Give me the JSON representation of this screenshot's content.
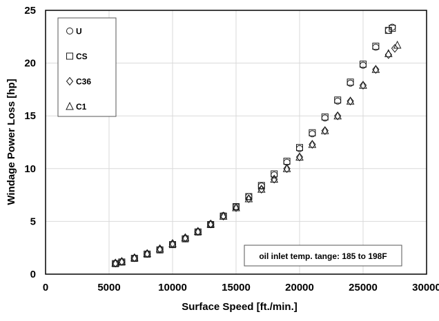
{
  "chart_data": {
    "type": "scatter",
    "xlabel": "Surface Speed [ft./min.]",
    "ylabel": "Windage Power Loss  [hp]",
    "xlim": [
      0,
      30000
    ],
    "ylim": [
      0,
      25
    ],
    "x_ticks": [
      0,
      5000,
      10000,
      15000,
      20000,
      25000,
      30000
    ],
    "y_ticks": [
      0,
      5,
      10,
      15,
      20,
      25
    ],
    "grid": true,
    "legend_position": "top-left",
    "annotation": "oil inlet temp. tange: 185 to 198F",
    "series": [
      {
        "name": "U",
        "marker": "circle",
        "x": [
          5500,
          6000,
          7000,
          8000,
          9000,
          10000,
          11000,
          12000,
          13000,
          14000,
          15000,
          16000,
          17000,
          18000,
          19000,
          20000,
          21000,
          22000,
          23000,
          24000,
          25000,
          26000,
          27000,
          27300
        ],
        "y": [
          1.0,
          1.15,
          1.5,
          1.9,
          2.3,
          2.8,
          3.35,
          4.0,
          4.75,
          5.55,
          6.4,
          7.35,
          8.35,
          9.4,
          10.6,
          11.9,
          13.3,
          14.8,
          16.4,
          18.1,
          19.8,
          21.5,
          23.1,
          23.4
        ]
      },
      {
        "name": "CS",
        "marker": "square",
        "x": [
          5500,
          6000,
          7000,
          8000,
          9000,
          10000,
          11000,
          12000,
          13000,
          14000,
          15000,
          16000,
          17000,
          18000,
          19000,
          20000,
          21000,
          22000,
          23000,
          24000,
          25000,
          26000,
          27000,
          27300
        ],
        "y": [
          1.0,
          1.15,
          1.5,
          1.9,
          2.3,
          2.8,
          3.35,
          4.0,
          4.7,
          5.5,
          6.4,
          7.35,
          8.4,
          9.5,
          10.7,
          12.0,
          13.4,
          14.9,
          16.5,
          18.2,
          19.9,
          21.6,
          23.1,
          23.3
        ]
      },
      {
        "name": "C36",
        "marker": "diamond",
        "x": [
          5500,
          6000,
          7000,
          8000,
          9000,
          10000,
          11000,
          12000,
          13000,
          14000,
          15000,
          16000,
          17000,
          18000,
          19000,
          20000,
          21000,
          22000,
          23000,
          24000,
          25000,
          26000,
          27000,
          27500
        ],
        "y": [
          1.05,
          1.2,
          1.55,
          1.95,
          2.4,
          2.9,
          3.45,
          4.05,
          4.75,
          5.5,
          6.3,
          7.15,
          8.05,
          9.0,
          10.0,
          11.1,
          12.3,
          13.6,
          15.0,
          16.4,
          17.9,
          19.4,
          20.8,
          21.4
        ]
      },
      {
        "name": "C1",
        "marker": "triangle",
        "x": [
          5500,
          6000,
          7000,
          8000,
          9000,
          10000,
          11000,
          12000,
          13000,
          14000,
          15000,
          16000,
          17000,
          18000,
          19000,
          20000,
          21000,
          22000,
          23000,
          24000,
          25000,
          26000,
          27000,
          27700
        ],
        "y": [
          1.05,
          1.2,
          1.55,
          1.95,
          2.4,
          2.9,
          3.45,
          4.05,
          4.75,
          5.5,
          6.3,
          7.15,
          8.05,
          9.0,
          10.0,
          11.1,
          12.3,
          13.6,
          15.0,
          16.4,
          17.9,
          19.4,
          20.9,
          21.7
        ]
      }
    ]
  }
}
